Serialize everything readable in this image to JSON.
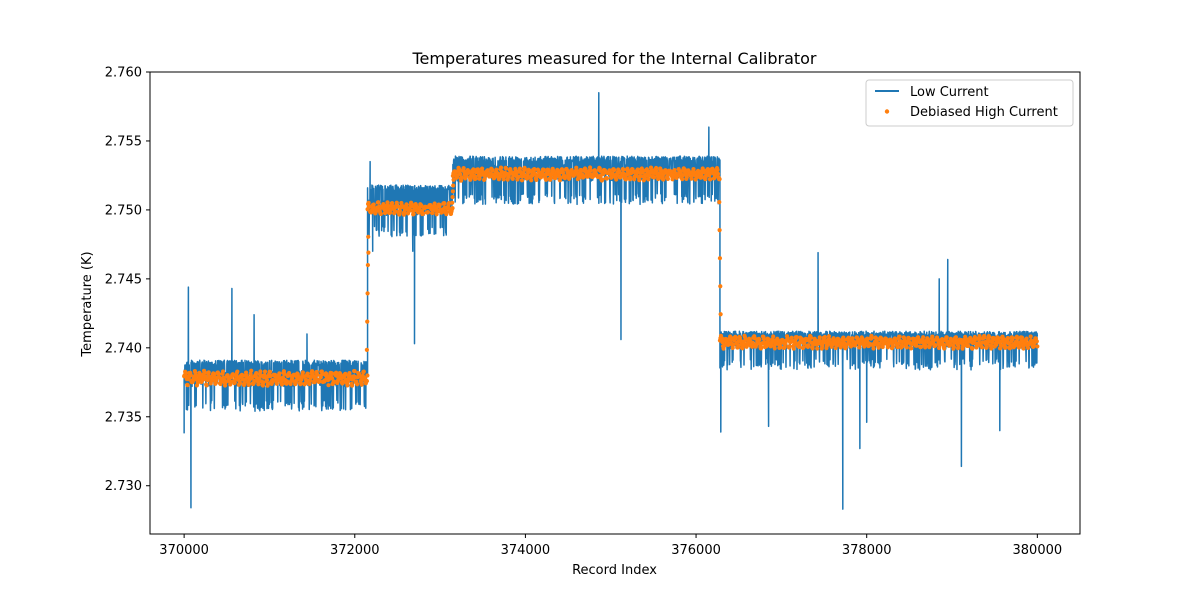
{
  "chart_data": {
    "type": "line",
    "title": "Temperatures measured for the Internal Calibrator",
    "xlabel": "Record Index",
    "ylabel": "Temperature (K)",
    "xlim": [
      369600,
      380500
    ],
    "ylim": [
      2.7265,
      2.76
    ],
    "xticks": [
      370000,
      372000,
      374000,
      376000,
      378000,
      380000
    ],
    "xtick_labels": [
      "370000",
      "372000",
      "374000",
      "376000",
      "378000",
      "380000"
    ],
    "yticks": [
      2.73,
      2.735,
      2.74,
      2.745,
      2.75,
      2.755,
      2.76
    ],
    "ytick_labels": [
      "2.730",
      "2.735",
      "2.740",
      "2.745",
      "2.750",
      "2.755",
      "2.760"
    ],
    "grid": false,
    "legend_position": "top-right",
    "series": [
      {
        "name": "Low Current",
        "style": "line",
        "color": "#1f77b4",
        "segments": [
          {
            "x_start": 370000,
            "x_end": 372150,
            "mean": 2.7378,
            "low": 2.7362,
            "high": 2.7391
          },
          {
            "x_start": 372150,
            "x_end": 373150,
            "mean": 2.7502,
            "low": 2.7488,
            "high": 2.7518
          },
          {
            "x_start": 373150,
            "x_end": 376280,
            "mean": 2.7527,
            "low": 2.7512,
            "high": 2.7539
          },
          {
            "x_start": 376280,
            "x_end": 380000,
            "mean": 2.7405,
            "low": 2.7392,
            "high": 2.7412
          }
        ],
        "spikes": [
          {
            "x": 370000,
            "y": 2.7338
          },
          {
            "x": 370080,
            "y": 2.7284
          },
          {
            "x": 370050,
            "y": 2.7444
          },
          {
            "x": 370560,
            "y": 2.7443
          },
          {
            "x": 370820,
            "y": 2.7424
          },
          {
            "x": 371440,
            "y": 2.741
          },
          {
            "x": 372180,
            "y": 2.7535
          },
          {
            "x": 372210,
            "y": 2.747
          },
          {
            "x": 372700,
            "y": 2.7403
          },
          {
            "x": 372680,
            "y": 2.747
          },
          {
            "x": 374860,
            "y": 2.7585
          },
          {
            "x": 375120,
            "y": 2.7406
          },
          {
            "x": 376150,
            "y": 2.756
          },
          {
            "x": 376290,
            "y": 2.7339
          },
          {
            "x": 376850,
            "y": 2.7343
          },
          {
            "x": 377430,
            "y": 2.7469
          },
          {
            "x": 377720,
            "y": 2.7283
          },
          {
            "x": 377920,
            "y": 2.7327
          },
          {
            "x": 378000,
            "y": 2.7346
          },
          {
            "x": 378950,
            "y": 2.7464
          },
          {
            "x": 379110,
            "y": 2.7314
          },
          {
            "x": 379560,
            "y": 2.734
          },
          {
            "x": 378850,
            "y": 2.745
          }
        ]
      },
      {
        "name": "Debiased High Current",
        "style": "scatter",
        "color": "#ff7f0e",
        "segments": [
          {
            "x_start": 370000,
            "x_end": 372150,
            "mean": 2.7378,
            "amplitude": 0.0007
          },
          {
            "x_start": 372150,
            "x_end": 373150,
            "mean": 2.7501,
            "amplitude": 0.0006
          },
          {
            "x_start": 373150,
            "x_end": 376280,
            "mean": 2.7526,
            "amplitude": 0.0006
          },
          {
            "x_start": 376280,
            "x_end": 380000,
            "mean": 2.7404,
            "amplitude": 0.0006
          }
        ],
        "outliers": [
          {
            "x": 372160,
            "y": 2.7469
          }
        ]
      }
    ]
  }
}
